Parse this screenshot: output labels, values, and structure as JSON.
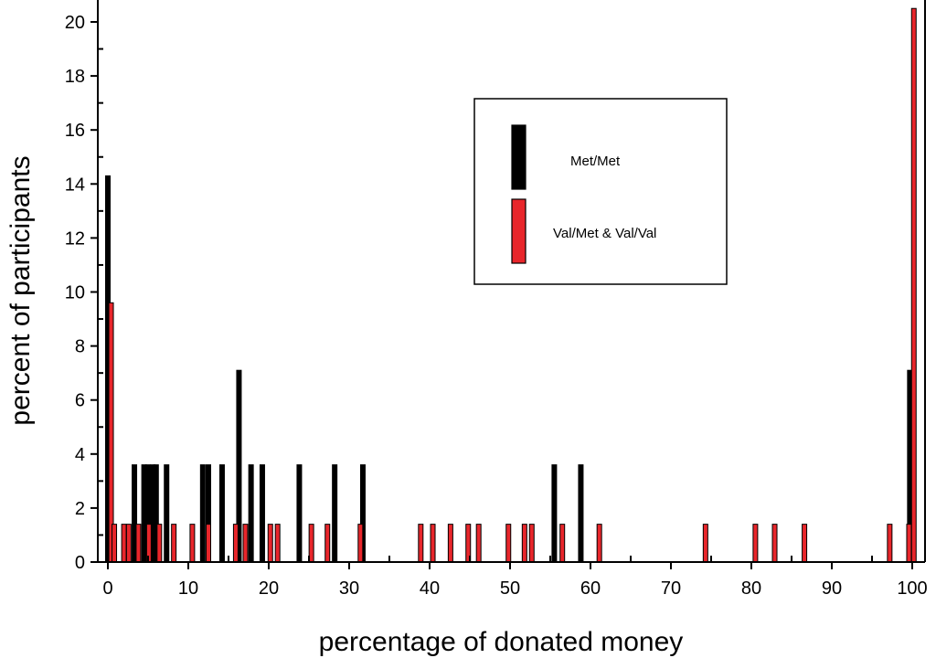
{
  "chart_data": {
    "type": "bar",
    "xlabel": "percentage of donated money",
    "ylabel": "percent of participants",
    "xlim": [
      -1,
      101
    ],
    "ylim": [
      0,
      21
    ],
    "x_ticks": [
      0,
      10,
      20,
      30,
      40,
      50,
      60,
      70,
      80,
      90,
      100
    ],
    "y_ticks": [
      0,
      2,
      4,
      6,
      8,
      10,
      12,
      14,
      16,
      18,
      20
    ],
    "legend_position": "upper-right",
    "grid": false,
    "series": [
      {
        "name": "Met/Met",
        "color": "#000000",
        "points": [
          {
            "x": 0,
            "y": 14.3
          },
          {
            "x": 3.3,
            "y": 3.6
          },
          {
            "x": 4.5,
            "y": 3.6
          },
          {
            "x": 5,
            "y": 3.6
          },
          {
            "x": 5.6,
            "y": 3.6
          },
          {
            "x": 6,
            "y": 3.6
          },
          {
            "x": 7.3,
            "y": 3.6
          },
          {
            "x": 11.8,
            "y": 3.6
          },
          {
            "x": 12.5,
            "y": 3.6
          },
          {
            "x": 14.2,
            "y": 3.6
          },
          {
            "x": 16.3,
            "y": 7.1
          },
          {
            "x": 17.8,
            "y": 3.6
          },
          {
            "x": 19.2,
            "y": 3.6
          },
          {
            "x": 23.8,
            "y": 3.6
          },
          {
            "x": 28.2,
            "y": 3.6
          },
          {
            "x": 31.7,
            "y": 3.6
          },
          {
            "x": 55.5,
            "y": 3.6
          },
          {
            "x": 58.8,
            "y": 3.6
          },
          {
            "x": 99.7,
            "y": 7.1
          }
        ]
      },
      {
        "name": "Val/Met & Val/Val",
        "color": "#e8262b",
        "points": [
          {
            "x": 0.4,
            "y": 9.6
          },
          {
            "x": 0.8,
            "y": 1.4
          },
          {
            "x": 2,
            "y": 1.4
          },
          {
            "x": 2.6,
            "y": 1.4
          },
          {
            "x": 3.8,
            "y": 1.4
          },
          {
            "x": 5.1,
            "y": 1.4
          },
          {
            "x": 6.4,
            "y": 1.4
          },
          {
            "x": 8.2,
            "y": 1.4
          },
          {
            "x": 10.5,
            "y": 1.4
          },
          {
            "x": 12.5,
            "y": 1.4
          },
          {
            "x": 15.9,
            "y": 1.4
          },
          {
            "x": 17.1,
            "y": 1.4
          },
          {
            "x": 20.2,
            "y": 1.4
          },
          {
            "x": 21.1,
            "y": 1.4
          },
          {
            "x": 25.3,
            "y": 1.4
          },
          {
            "x": 27.3,
            "y": 1.4
          },
          {
            "x": 31.4,
            "y": 1.4
          },
          {
            "x": 38.9,
            "y": 1.4
          },
          {
            "x": 40.4,
            "y": 1.4
          },
          {
            "x": 42.6,
            "y": 1.4
          },
          {
            "x": 44.8,
            "y": 1.4
          },
          {
            "x": 46.1,
            "y": 1.4
          },
          {
            "x": 49.8,
            "y": 1.4
          },
          {
            "x": 51.8,
            "y": 1.4
          },
          {
            "x": 52.7,
            "y": 1.4
          },
          {
            "x": 56.5,
            "y": 1.4
          },
          {
            "x": 61.1,
            "y": 1.4
          },
          {
            "x": 74.3,
            "y": 1.4
          },
          {
            "x": 80.5,
            "y": 1.4
          },
          {
            "x": 82.9,
            "y": 1.4
          },
          {
            "x": 86.6,
            "y": 1.4
          },
          {
            "x": 97.2,
            "y": 1.4
          },
          {
            "x": 99.6,
            "y": 1.4
          },
          {
            "x": 100.2,
            "y": 20.5
          }
        ]
      }
    ]
  }
}
